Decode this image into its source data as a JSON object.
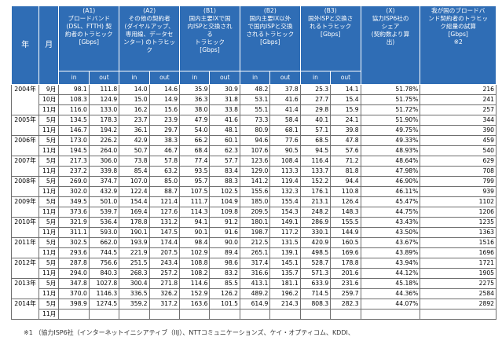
{
  "headers": {
    "year": "年",
    "month": "月",
    "a1": "(A1)\nブロードバンド\n(DSL、FTTH) 契\n約者のトラヒック\n[Gbps]",
    "a2": "(A2)\nその他の契約者\n(ダイヤルアップ、\n専用線、データセ\nンター) のトラヒッ\nク",
    "b1": "(B1)\n国内主要IXで国\n内ISPと交換され\nる\nトラヒック\n[Gbps]",
    "b2": "(B2)\n国内主要IX以外\nで国内ISPと交換\nされるトラヒック\n[Gbps]",
    "b3": "(B3)\n国外ISPと交換さ\nれるトラヒック\n[Gbps]",
    "x": "(X)\n協力ISP6社の\nシェア\n(契約数より算\n出)",
    "total": "我が国のブロードバ\nンド契約者のトラヒッ\nク総量の試算\n[Gbps]\n※2",
    "in": "in",
    "out": "out"
  },
  "rows": [
    {
      "year": "2004年",
      "month": "9月",
      "v": [
        "98.1",
        "111.8",
        "14.0",
        "14.6",
        "35.9",
        "30.9",
        "48.2",
        "37.8",
        "25.3",
        "14.1",
        "51.78%",
        "216"
      ]
    },
    {
      "year": "",
      "month": "10月",
      "v": [
        "108.3",
        "124.9",
        "15.0",
        "14.9",
        "36.3",
        "31.8",
        "53.1",
        "41.6",
        "27.7",
        "15.4",
        "51.75%",
        "241"
      ]
    },
    {
      "year": "",
      "month": "11月",
      "v": [
        "116.0",
        "133.0",
        "16.2",
        "15.6",
        "38.0",
        "33.8",
        "55.1",
        "41.4",
        "29.8",
        "15.9",
        "51.72%",
        "257"
      ]
    },
    {
      "year": "2005年",
      "month": "5月",
      "v": [
        "134.5",
        "178.3",
        "23.7",
        "23.9",
        "47.9",
        "41.6",
        "73.3",
        "58.4",
        "40.1",
        "24.1",
        "51.90%",
        "344"
      ]
    },
    {
      "year": "",
      "month": "11月",
      "v": [
        "146.7",
        "194.2",
        "36.1",
        "29.7",
        "54.0",
        "48.1",
        "80.9",
        "68.1",
        "57.1",
        "39.8",
        "49.75%",
        "390"
      ]
    },
    {
      "year": "2006年",
      "month": "5月",
      "v": [
        "173.0",
        "226.2",
        "42.9",
        "38.3",
        "66.2",
        "60.1",
        "94.6",
        "77.6",
        "68.5",
        "47.8",
        "49.33%",
        "459"
      ]
    },
    {
      "year": "",
      "month": "11月",
      "v": [
        "194.5",
        "264.0",
        "50.7",
        "46.7",
        "68.4",
        "62.3",
        "107.6",
        "90.5",
        "94.5",
        "57.6",
        "48.93%",
        "540"
      ]
    },
    {
      "year": "2007年",
      "month": "5月",
      "v": [
        "217.3",
        "306.0",
        "73.8",
        "57.8",
        "77.4",
        "57.7",
        "123.6",
        "108.4",
        "116.4",
        "71.2",
        "48.64%",
        "629"
      ]
    },
    {
      "year": "",
      "month": "11月",
      "v": [
        "237.2",
        "339.8",
        "85.4",
        "63.2",
        "93.5",
        "83.4",
        "129.0",
        "113.3",
        "133.7",
        "81.8",
        "47.98%",
        "708"
      ]
    },
    {
      "year": "2008年",
      "month": "5月",
      "v": [
        "269.0",
        "374.7",
        "107.0",
        "85.0",
        "95.7",
        "88.3",
        "141.2",
        "119.4",
        "152.2",
        "94.4",
        "46.90%",
        "799"
      ]
    },
    {
      "year": "",
      "month": "11月",
      "v": [
        "302.0",
        "432.9",
        "122.4",
        "88.7",
        "107.5",
        "102.5",
        "155.6",
        "132.3",
        "176.1",
        "110.8",
        "46.11%",
        "939"
      ]
    },
    {
      "year": "2009年",
      "month": "5月",
      "v": [
        "349.5",
        "501.0",
        "154.4",
        "121.4",
        "111.7",
        "104.9",
        "185.0",
        "155.4",
        "213.1",
        "126.4",
        "45.47%",
        "1102"
      ]
    },
    {
      "year": "",
      "month": "11月",
      "v": [
        "373.6",
        "539.7",
        "169.4",
        "127.6",
        "114.3",
        "109.8",
        "209.5",
        "154.3",
        "248.2",
        "148.3",
        "44.75%",
        "1206"
      ]
    },
    {
      "year": "2010年",
      "month": "5月",
      "v": [
        "321.9",
        "536.4",
        "178.8",
        "131.2",
        "94.1",
        "91.2",
        "180.1",
        "149.1",
        "286.9",
        "155.5",
        "43.43%",
        "1235"
      ]
    },
    {
      "year": "",
      "month": "11月",
      "v": [
        "311.1",
        "593.0",
        "190.1",
        "147.5",
        "90.1",
        "91.6",
        "198.7",
        "117.2",
        "330.1",
        "144.9",
        "43.50%",
        "1363"
      ]
    },
    {
      "year": "2011年",
      "month": "5月",
      "v": [
        "302.5",
        "662.0",
        "193.9",
        "174.4",
        "98.4",
        "90.0",
        "212.5",
        "131.5",
        "420.9",
        "160.5",
        "43.67%",
        "1516"
      ]
    },
    {
      "year": "",
      "month": "11月",
      "v": [
        "293.6",
        "744.5",
        "221.9",
        "207.5",
        "102.9",
        "89.4",
        "265.1",
        "139.1",
        "498.5",
        "169.6",
        "43.89%",
        "1696"
      ]
    },
    {
      "year": "2012年",
      "month": "5月",
      "v": [
        "287.8",
        "756.6",
        "251.5",
        "243.4",
        "108.8",
        "98.6",
        "317.4",
        "145.1",
        "528.7",
        "178.8",
        "43.94%",
        "1721"
      ]
    },
    {
      "year": "",
      "month": "11月",
      "v": [
        "294.0",
        "840.3",
        "268.3",
        "257.2",
        "108.2",
        "83.2",
        "316.6",
        "135.7",
        "571.3",
        "201.6",
        "44.12%",
        "1905"
      ]
    },
    {
      "year": "2013年",
      "month": "5月",
      "v": [
        "347.8",
        "1027.8",
        "300.4",
        "271.8",
        "114.6",
        "85.5",
        "413.1",
        "181.1",
        "633.9",
        "231.6",
        "45.18%",
        "2275"
      ]
    },
    {
      "year": "",
      "month": "11月",
      "v": [
        "370.0",
        "1146.3",
        "336.5",
        "326.2",
        "152.9",
        "126.2",
        "489.2",
        "196.2",
        "714.5",
        "259.7",
        "44.36%",
        "2584"
      ]
    },
    {
      "year": "2014年",
      "month": "5月",
      "v": [
        "398.9",
        "1274.5",
        "359.2",
        "317.2",
        "163.6",
        "101.5",
        "614.9",
        "214.3",
        "808.3",
        "282.3",
        "44.07%",
        "2892"
      ]
    },
    {
      "year": "",
      "month": "11月",
      "v": [
        "",
        "",
        "",
        "",
        "",
        "",
        "",
        "",
        "",
        "",
        "",
        ""
      ]
    }
  ],
  "footnote": "※1 （協力ISP6社（インターネットイニシアティブ（IIJ）、NTTコミュニケーションズ、ケイ・オプティコム、KDDI、"
}
